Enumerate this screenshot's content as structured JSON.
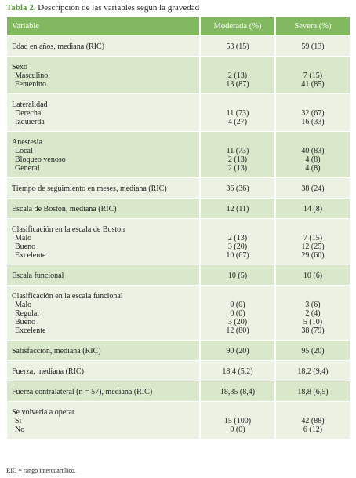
{
  "title": {
    "label": "Tabla 2.",
    "text": "Descripción de las variables según la gravedad"
  },
  "table": {
    "header": [
      "Variable",
      "Moderada (%)",
      "Severa (%)"
    ],
    "rows": [
      {
        "label": "Edad en años, mediana (RIC)",
        "moderada": "53 (15)",
        "severa": "59 (13)"
      },
      {
        "label": "Sexo",
        "items": [
          {
            "label": "Masculino",
            "moderada": "2 (13)",
            "severa": "7 (15)"
          },
          {
            "label": "Femenino",
            "moderada": "13 (87)",
            "severa": "41 (85)"
          }
        ]
      },
      {
        "label": "Lateralidad",
        "items": [
          {
            "label": "Derecha",
            "moderada": "11 (73)",
            "severa": "32 (67)"
          },
          {
            "label": "Izquierda",
            "moderada": "4 (27)",
            "severa": "16 (33)"
          }
        ]
      },
      {
        "label": "Anestesia",
        "items": [
          {
            "label": "Local",
            "moderada": "11 (73)",
            "severa": "40 (83)"
          },
          {
            "label": "Bloqueo venoso",
            "moderada": "2 (13)",
            "severa": "4 (8)"
          },
          {
            "label": "General",
            "moderada": "2 (13)",
            "severa": "4 (8)"
          }
        ]
      },
      {
        "label": "Tiempo de seguimiento en meses, mediana (RIC)",
        "moderada": "36 (36)",
        "severa": "38 (24)"
      },
      {
        "label": "Escala de Boston, mediana (RIC)",
        "moderada": "12 (11)",
        "severa": "14 (8)"
      },
      {
        "label": "Clasificación en la escala de Boston",
        "items": [
          {
            "label": "Malo",
            "moderada": "2 (13)",
            "severa": "7 (15)"
          },
          {
            "label": "Bueno",
            "moderada": "3 (20)",
            "severa": "12 (25)"
          },
          {
            "label": "Excelente",
            "moderada": "10 (67)",
            "severa": "29 (60)"
          }
        ]
      },
      {
        "label": "Escala funcional",
        "moderada": "10 (5)",
        "severa": "10 (6)"
      },
      {
        "label": "Clasificación en la escala funcional",
        "items": [
          {
            "label": "Malo",
            "moderada": "0 (0)",
            "severa": "3 (6)"
          },
          {
            "label": "Regular",
            "moderada": "0 (0)",
            "severa": "2 (4)"
          },
          {
            "label": "Bueno",
            "moderada": "3 (20)",
            "severa": "5 (10)"
          },
          {
            "label": "Excelente",
            "moderada": "12 (80)",
            "severa": "38 (79)"
          }
        ]
      },
      {
        "label": "Satisfacción, mediana (RIC)",
        "moderada": "90 (20)",
        "severa": "95 (20)"
      },
      {
        "label": "Fuerza, mediana (RIC)",
        "moderada": "18,4 (5,2)",
        "severa": "18,2 (9,4)"
      },
      {
        "label": "Fuerza contralateral (n = 57), mediana (RIC)",
        "moderada": "18,35 (8,4)",
        "severa": "18,8 (6,5)"
      },
      {
        "label": "Se volvería a operar",
        "items": [
          {
            "label": "Sí",
            "moderada": "15 (100)",
            "severa": "42 (88)"
          },
          {
            "label": "No",
            "moderada": "0 (0)",
            "severa": "6 (12)"
          }
        ]
      }
    ]
  },
  "footnote": "RIC = rango intercuartílico."
}
